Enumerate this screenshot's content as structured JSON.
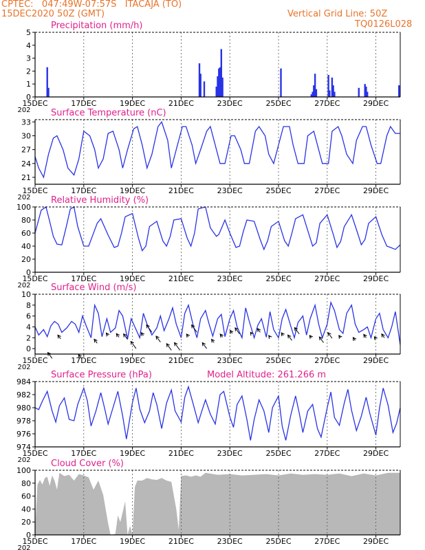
{
  "header": {
    "line1": "CPTEC:   047:49W-07:57S   ITACAJA (TO)",
    "line2": "15DEC2020 50Z (GMT)",
    "grid_note": "Vertical Grid Line: 50Z",
    "code": "TQ0126L028"
  },
  "colors": {
    "header": "#e8732a",
    "title": "#e0208c",
    "series": "#2832e6",
    "bar": "#2832e6",
    "cloud": "#b8b8b8",
    "grid": "#555555"
  },
  "x_axis": {
    "tick_labels": [
      "15DEC",
      "17DEC",
      "19DEC",
      "21DEC",
      "23DEC",
      "25DEC",
      "27DEC",
      "29DEC"
    ],
    "year_fragment": "202",
    "range_days": [
      0,
      15.0
    ]
  },
  "chart_data": [
    {
      "name": "precip",
      "type": "bar",
      "title": "Precipitation (mm/h)",
      "ylim": [
        0,
        5
      ],
      "yticks": [
        0,
        1,
        2,
        3,
        4,
        5
      ],
      "values": [
        [
          0.5,
          2.3
        ],
        [
          0.55,
          0.7
        ],
        [
          6.75,
          2.6
        ],
        [
          6.8,
          1.8
        ],
        [
          6.95,
          1.2
        ],
        [
          7.45,
          0.8
        ],
        [
          7.5,
          1.6
        ],
        [
          7.55,
          2.2
        ],
        [
          7.6,
          2.3
        ],
        [
          7.65,
          3.7
        ],
        [
          7.7,
          1.5
        ],
        [
          10.1,
          2.2
        ],
        [
          11.35,
          0.2
        ],
        [
          11.4,
          0.4
        ],
        [
          11.45,
          0.9
        ],
        [
          11.5,
          1.8
        ],
        [
          11.55,
          0.6
        ],
        [
          12.05,
          1.7
        ],
        [
          12.1,
          0.5
        ],
        [
          12.2,
          1.5
        ],
        [
          12.25,
          0.9
        ],
        [
          12.3,
          0.4
        ],
        [
          13.3,
          0.7
        ],
        [
          13.55,
          1.0
        ],
        [
          13.6,
          0.8
        ],
        [
          13.65,
          0.4
        ],
        [
          14.95,
          0.9
        ]
      ]
    },
    {
      "name": "temp",
      "type": "line",
      "title": "Surface Temperature (nC)",
      "ylim": [
        19.5,
        33.5
      ],
      "yticks": [
        21,
        24,
        27,
        30,
        33
      ],
      "x": [
        0,
        0.15,
        0.35,
        0.55,
        0.75,
        0.9,
        1.15,
        1.35,
        1.6,
        1.8,
        2.0,
        2.25,
        2.45,
        2.6,
        2.8,
        3.0,
        3.2,
        3.45,
        3.6,
        3.8,
        4.05,
        4.2,
        4.4,
        4.6,
        4.8,
        5.05,
        5.2,
        5.45,
        5.6,
        5.8,
        6.05,
        6.2,
        6.45,
        6.6,
        6.8,
        7.05,
        7.2,
        7.45,
        7.6,
        7.8,
        8.05,
        8.2,
        8.45,
        8.6,
        8.8,
        9.05,
        9.2,
        9.45,
        9.6,
        9.8,
        10.05,
        10.2,
        10.45,
        10.6,
        10.8,
        11.05,
        11.2,
        11.45,
        11.6,
        11.8,
        12.05,
        12.2,
        12.45,
        12.6,
        12.8,
        13.05,
        13.2,
        13.45,
        13.6,
        13.8,
        14.05,
        14.2,
        14.45,
        14.6,
        14.8,
        15.0
      ],
      "values": [
        25.5,
        23,
        21,
        26,
        29.5,
        30,
        27,
        23,
        21.5,
        25,
        31,
        30,
        27,
        23,
        25,
        30.5,
        31,
        27,
        23,
        27,
        31.5,
        32,
        28,
        23,
        26,
        32,
        33,
        29,
        23,
        27,
        32,
        32,
        28,
        24,
        27,
        31,
        32,
        27,
        24,
        24,
        30,
        30,
        27,
        24,
        24,
        31,
        32,
        30,
        26,
        24,
        29,
        32,
        32,
        28,
        24,
        24,
        30,
        31,
        28,
        24,
        24,
        31,
        32,
        30,
        26,
        24,
        29,
        32,
        32,
        28,
        24,
        24,
        30,
        32,
        30.5,
        30.5
      ]
    },
    {
      "name": "rh",
      "type": "line",
      "title": "Relative Humidity (%)",
      "ylim": [
        0,
        100
      ],
      "yticks": [
        0,
        20,
        40,
        60,
        80,
        100
      ],
      "x": [
        0,
        0.25,
        0.45,
        0.6,
        0.75,
        0.9,
        1.1,
        1.25,
        1.45,
        1.6,
        1.75,
        2.0,
        2.2,
        2.35,
        2.55,
        2.7,
        3.0,
        3.25,
        3.4,
        3.55,
        3.7,
        4.0,
        4.25,
        4.4,
        4.55,
        4.7,
        5.0,
        5.25,
        5.4,
        5.55,
        5.7,
        6.0,
        6.25,
        6.4,
        6.55,
        6.7,
        7.0,
        7.2,
        7.35,
        7.45,
        7.55,
        7.8,
        8.0,
        8.25,
        8.4,
        8.55,
        8.7,
        9.0,
        9.25,
        9.4,
        9.55,
        9.7,
        10.0,
        10.25,
        10.4,
        10.55,
        10.7,
        11.0,
        11.25,
        11.4,
        11.55,
        11.7,
        12.0,
        12.25,
        12.4,
        12.55,
        12.7,
        13.0,
        13.25,
        13.4,
        13.55,
        13.7,
        14.0,
        14.25,
        14.45,
        14.6,
        14.8,
        15.0
      ],
      "values": [
        60,
        95,
        100,
        78,
        55,
        43,
        42,
        65,
        97,
        100,
        70,
        40,
        40,
        55,
        75,
        82,
        57,
        38,
        40,
        60,
        85,
        90,
        52,
        33,
        40,
        70,
        78,
        48,
        40,
        55,
        80,
        82,
        52,
        40,
        60,
        97,
        100,
        68,
        60,
        55,
        58,
        80,
        60,
        38,
        40,
        62,
        80,
        78,
        50,
        35,
        48,
        70,
        78,
        48,
        40,
        60,
        82,
        88,
        58,
        40,
        45,
        75,
        88,
        58,
        38,
        47,
        70,
        88,
        60,
        42,
        50,
        75,
        85,
        57,
        40,
        38,
        35,
        42
      ]
    },
    {
      "name": "wind",
      "type": "line",
      "title": "Surface Wind (m/s)",
      "ylim": [
        -1,
        10
      ],
      "yticks": [
        0,
        2,
        4,
        6,
        8,
        10
      ],
      "x": [
        0,
        0.15,
        0.35,
        0.5,
        0.65,
        0.8,
        0.95,
        1.1,
        1.3,
        1.5,
        1.65,
        1.8,
        1.95,
        2.1,
        2.3,
        2.45,
        2.6,
        2.75,
        2.95,
        3.1,
        3.3,
        3.45,
        3.6,
        3.8,
        3.95,
        4.1,
        4.3,
        4.45,
        4.6,
        4.8,
        5.0,
        5.15,
        5.3,
        5.5,
        5.65,
        5.8,
        6.0,
        6.15,
        6.3,
        6.5,
        6.65,
        6.8,
        7.0,
        7.15,
        7.3,
        7.5,
        7.65,
        7.8,
        8.0,
        8.15,
        8.3,
        8.5,
        8.65,
        8.8,
        9.0,
        9.15,
        9.3,
        9.5,
        9.65,
        9.8,
        10.0,
        10.15,
        10.3,
        10.5,
        10.65,
        10.8,
        11.0,
        11.15,
        11.3,
        11.5,
        11.65,
        11.8,
        12.0,
        12.15,
        12.3,
        12.5,
        12.65,
        12.8,
        13.0,
        13.15,
        13.3,
        13.5,
        13.65,
        13.8,
        14.0,
        14.15,
        14.3,
        14.5,
        14.65,
        14.8,
        15.0
      ],
      "values": [
        4,
        2.5,
        3.5,
        2.2,
        4.2,
        5,
        4.5,
        3,
        3.8,
        5,
        4.5,
        3,
        6,
        4.2,
        2,
        8,
        6.5,
        2.2,
        5.5,
        3,
        3.8,
        7,
        6,
        1.8,
        5.5,
        4,
        2,
        6.5,
        4.5,
        2.5,
        3.8,
        6,
        3.3,
        5.5,
        7.5,
        4.5,
        2,
        6.5,
        8,
        4.2,
        2,
        5.5,
        7,
        4.5,
        2.3,
        5.5,
        6.3,
        2.2,
        5.5,
        7,
        4,
        2,
        7.5,
        5,
        2,
        4.3,
        5.5,
        2.1,
        6.8,
        3.5,
        2,
        5.5,
        7.2,
        4.2,
        2,
        4.8,
        6,
        2.5,
        5.5,
        8,
        4.5,
        2,
        4.5,
        8.5,
        7,
        3.5,
        2.8,
        6.5,
        8,
        4.5,
        3,
        3.5,
        4,
        2,
        5.5,
        6.5,
        3.5,
        2,
        4,
        6.8,
        0.7
      ],
      "arrows": [
        [
          0.7,
          -1.8,
          2.8
        ],
        [
          1.05,
          1.8,
          1.8
        ],
        [
          1.9,
          -1.8,
          1.8
        ],
        [
          2.55,
          1.0,
          1.9
        ],
        [
          3.0,
          2.4,
          1.2
        ],
        [
          3.45,
          2.1,
          1.7
        ],
        [
          3.8,
          1.7,
          2.6
        ],
        [
          4.15,
          0.0,
          3.4
        ],
        [
          4.45,
          2.4,
          1.4
        ],
        [
          4.8,
          3.0,
          3.5
        ],
        [
          5.15,
          1.2,
          2.8
        ],
        [
          5.6,
          -0.3,
          3.1
        ],
        [
          5.95,
          -0.3,
          3.6
        ],
        [
          6.3,
          2.2,
          1.2
        ],
        [
          6.65,
          3.0,
          3.5
        ],
        [
          7.05,
          0.0,
          2.8
        ],
        [
          7.35,
          1.1,
          1.6
        ],
        [
          7.7,
          2.1,
          1.5
        ],
        [
          8.1,
          2.8,
          1.4
        ],
        [
          8.4,
          2.7,
          2.9
        ],
        [
          8.9,
          2.7,
          0.8
        ],
        [
          9.25,
          3.0,
          1.8
        ],
        [
          9.65,
          2.1,
          0.8
        ],
        [
          10.2,
          2.4,
          1.3
        ],
        [
          10.55,
          1.5,
          2.6
        ],
        [
          10.85,
          2.7,
          3.0
        ],
        [
          11.35,
          2.0,
          1.1
        ],
        [
          11.85,
          1.1,
          2.7
        ],
        [
          12.2,
          1.9,
          2.7
        ],
        [
          12.55,
          2.0,
          1.1
        ],
        [
          13.15,
          1.5,
          1.4
        ],
        [
          13.6,
          2.0,
          1.6
        ],
        [
          14.0,
          1.8,
          1.0
        ],
        [
          14.35,
          2.0,
          1.8
        ]
      ]
    },
    {
      "name": "pres",
      "type": "line",
      "title": "Surface Pressure (hPa)",
      "annotation": "Model Altitude: 261.266 m",
      "ylim": [
        974,
        984
      ],
      "yticks": [
        974,
        976,
        978,
        980,
        982,
        984
      ],
      "x": [
        0,
        0.15,
        0.3,
        0.5,
        0.7,
        0.85,
        1.0,
        1.2,
        1.4,
        1.6,
        1.75,
        2.0,
        2.15,
        2.3,
        2.5,
        2.7,
        2.85,
        3.0,
        3.2,
        3.4,
        3.6,
        3.75,
        4.0,
        4.15,
        4.3,
        4.5,
        4.7,
        4.85,
        5.0,
        5.2,
        5.4,
        5.6,
        5.75,
        6.0,
        6.15,
        6.3,
        6.5,
        6.7,
        6.85,
        7.0,
        7.2,
        7.4,
        7.6,
        7.75,
        8.0,
        8.15,
        8.3,
        8.5,
        8.7,
        8.85,
        9.0,
        9.2,
        9.4,
        9.6,
        9.75,
        10.0,
        10.15,
        10.3,
        10.5,
        10.7,
        10.85,
        11.0,
        11.2,
        11.4,
        11.6,
        11.75,
        12.0,
        12.15,
        12.3,
        12.5,
        12.7,
        12.85,
        13.0,
        13.2,
        13.4,
        13.6,
        13.75,
        14.0,
        14.15,
        14.3,
        14.5,
        14.7,
        14.85,
        15.0
      ],
      "values": [
        980,
        979.7,
        981,
        982.5,
        979.5,
        977.8,
        980.3,
        981.5,
        978.2,
        978,
        980.5,
        983,
        981,
        977.2,
        979.5,
        982.3,
        980,
        977.5,
        980,
        982.5,
        978.7,
        975.2,
        980.8,
        983,
        979.8,
        977.7,
        979.5,
        982.3,
        980.5,
        976.8,
        980.7,
        982.7,
        979.5,
        977.8,
        981.6,
        983.2,
        980.5,
        977.7,
        979.5,
        981.2,
        979,
        977.5,
        982,
        982.5,
        978.6,
        977,
        980.5,
        981.8,
        978.2,
        975,
        978.2,
        981.2,
        979.5,
        976.2,
        980,
        981.8,
        977.2,
        975,
        978.8,
        981.8,
        979.2,
        976.2,
        979.5,
        980.5,
        976.8,
        975.5,
        980,
        982.4,
        978.5,
        977.3,
        980.7,
        982.8,
        979.6,
        976.5,
        978.7,
        981.6,
        979.1,
        975.8,
        980,
        983,
        980.4,
        976.2,
        977.6,
        980
      ]
    },
    {
      "name": "cloud",
      "type": "area",
      "title": "Cloud Cover (%)",
      "ylim": [
        0,
        100
      ],
      "yticks": [
        0,
        20,
        40,
        60,
        80,
        100
      ],
      "x": [
        0,
        0.1,
        0.2,
        0.3,
        0.4,
        0.5,
        0.6,
        0.7,
        0.8,
        0.9,
        1.0,
        1.2,
        1.4,
        1.6,
        1.8,
        2.0,
        2.2,
        2.4,
        2.6,
        2.8,
        3.0,
        3.1,
        3.2,
        3.3,
        3.4,
        3.5,
        3.6,
        3.7,
        3.8,
        3.9,
        4.0,
        4.1,
        4.2,
        4.4,
        4.6,
        4.8,
        5.0,
        5.2,
        5.4,
        5.6,
        5.8,
        5.9,
        6.0,
        6.2,
        6.4,
        6.6,
        6.8,
        7.0,
        7.5,
        8.0,
        8.5,
        9.0,
        9.5,
        10.0,
        10.5,
        11.0,
        11.5,
        12.0,
        12.5,
        13.0,
        13.5,
        14.0,
        14.5,
        15.0
      ],
      "values": [
        10,
        78,
        85,
        78,
        88,
        90,
        76,
        92,
        84,
        70,
        96,
        91,
        93,
        84,
        94,
        92,
        89,
        70,
        84,
        62,
        18,
        0,
        0,
        2,
        30,
        20,
        35,
        52,
        0,
        14,
        0,
        74,
        84,
        84,
        88,
        86,
        85,
        88,
        84,
        82,
        40,
        8,
        91,
        92,
        90,
        92,
        90,
        96,
        93,
        94,
        92,
        93,
        94,
        92,
        95,
        93,
        94,
        93,
        95,
        91,
        95,
        92,
        96,
        96
      ]
    }
  ]
}
